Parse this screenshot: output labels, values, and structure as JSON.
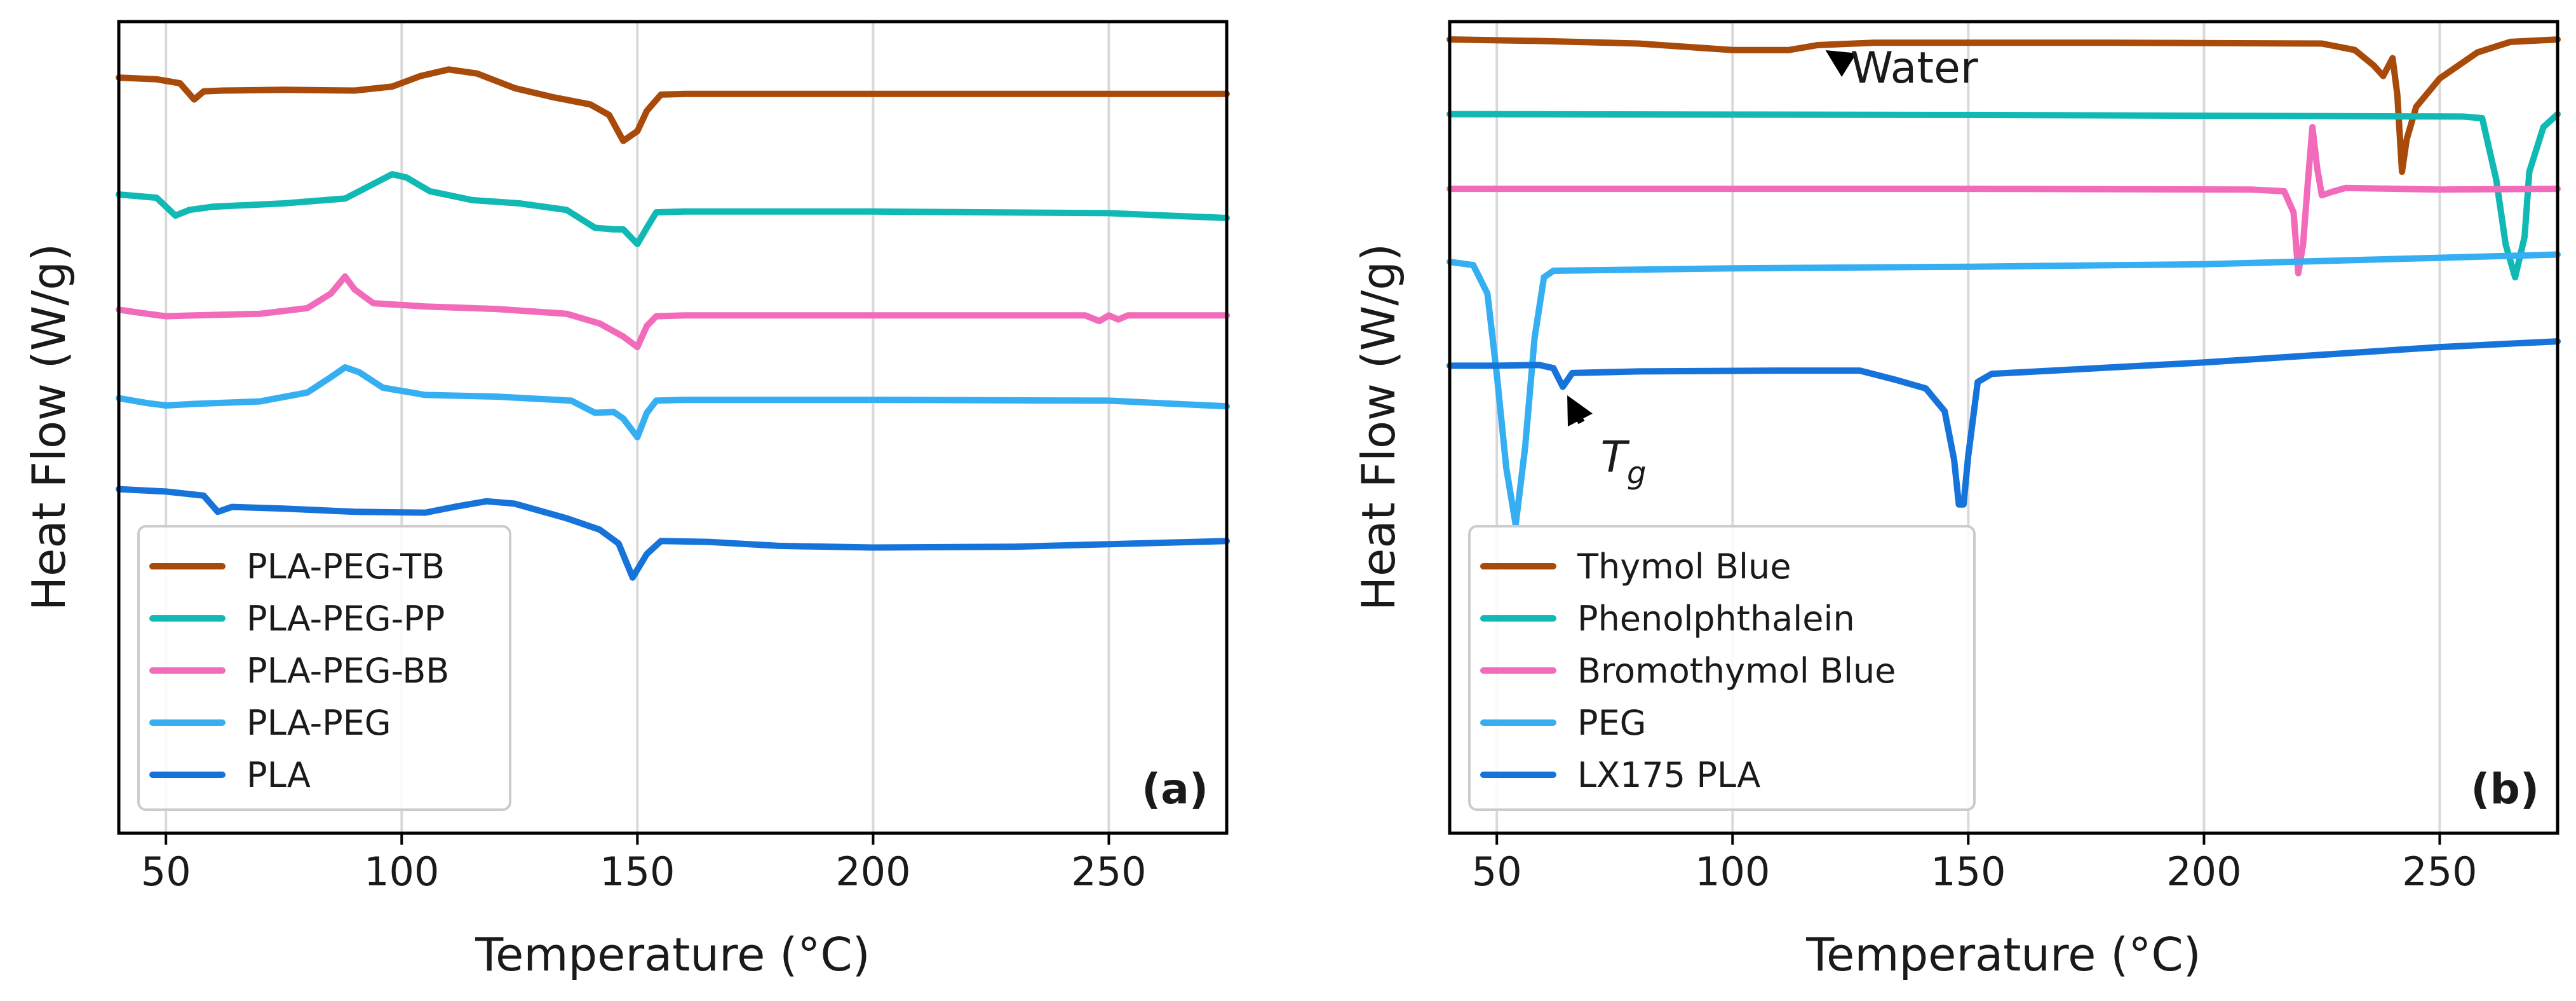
{
  "chart_data": [
    {
      "type": "line",
      "panel_label": "(a)",
      "title": "",
      "xlabel": "Temperature (°C)",
      "ylabel": "Heat Flow (W/g)",
      "xlim": [
        40,
        275
      ],
      "ylim": [
        0,
        100
      ],
      "xticks": [
        50,
        100,
        150,
        200,
        250
      ],
      "grid": "vertical",
      "legend_position": "lower-left",
      "series": [
        {
          "name": "PLA-PEG-TB",
          "color": "#a84a0a",
          "points": [
            [
              40,
              93.1
            ],
            [
              48,
              92.9
            ],
            [
              53,
              92.4
            ],
            [
              56,
              90.4
            ],
            [
              58,
              91.4
            ],
            [
              62,
              91.5
            ],
            [
              75,
              91.6
            ],
            [
              90,
              91.5
            ],
            [
              98,
              92.0
            ],
            [
              104,
              93.3
            ],
            [
              110,
              94.1
            ],
            [
              116,
              93.6
            ],
            [
              124,
              91.8
            ],
            [
              132,
              90.7
            ],
            [
              140,
              89.8
            ],
            [
              144,
              88.5
            ],
            [
              147,
              85.3
            ],
            [
              150,
              86.5
            ],
            [
              152,
              89.0
            ],
            [
              155,
              91.0
            ],
            [
              160,
              91.1
            ],
            [
              200,
              91.1
            ],
            [
              275,
              91.1
            ]
          ]
        },
        {
          "name": "PLA-PEG-PP",
          "color": "#10b9b4",
          "points": [
            [
              40,
              78.7
            ],
            [
              48,
              78.3
            ],
            [
              52,
              76.1
            ],
            [
              55,
              76.8
            ],
            [
              60,
              77.2
            ],
            [
              75,
              77.6
            ],
            [
              88,
              78.2
            ],
            [
              94,
              80.0
            ],
            [
              98,
              81.2
            ],
            [
              101,
              80.8
            ],
            [
              106,
              79.1
            ],
            [
              115,
              78.0
            ],
            [
              125,
              77.6
            ],
            [
              135,
              76.8
            ],
            [
              141,
              74.6
            ],
            [
              145,
              74.4
            ],
            [
              147,
              74.4
            ],
            [
              150,
              72.6
            ],
            [
              152,
              74.6
            ],
            [
              154,
              76.5
            ],
            [
              160,
              76.6
            ],
            [
              200,
              76.6
            ],
            [
              250,
              76.4
            ],
            [
              275,
              75.8
            ]
          ]
        },
        {
          "name": "PLA-PEG-BB",
          "color": "#f26bbb",
          "points": [
            [
              40,
              64.5
            ],
            [
              46,
              64.0
            ],
            [
              50,
              63.7
            ],
            [
              56,
              63.8
            ],
            [
              70,
              64.0
            ],
            [
              80,
              64.7
            ],
            [
              85,
              66.5
            ],
            [
              88,
              68.6
            ],
            [
              90,
              67.0
            ],
            [
              94,
              65.3
            ],
            [
              105,
              64.9
            ],
            [
              120,
              64.6
            ],
            [
              135,
              64.0
            ],
            [
              142,
              62.8
            ],
            [
              147,
              61.2
            ],
            [
              150,
              59.9
            ],
            [
              152,
              62.5
            ],
            [
              154,
              63.7
            ],
            [
              160,
              63.8
            ],
            [
              200,
              63.8
            ],
            [
              245,
              63.8
            ],
            [
              248,
              63.1
            ],
            [
              250,
              63.8
            ],
            [
              252,
              63.3
            ],
            [
              254,
              63.8
            ],
            [
              275,
              63.8
            ]
          ]
        },
        {
          "name": "PLA-PEG",
          "color": "#35aef2",
          "points": [
            [
              40,
              53.6
            ],
            [
              46,
              53.0
            ],
            [
              50,
              52.7
            ],
            [
              56,
              52.9
            ],
            [
              70,
              53.2
            ],
            [
              80,
              54.3
            ],
            [
              85,
              56.2
            ],
            [
              88,
              57.4
            ],
            [
              91,
              56.8
            ],
            [
              96,
              54.9
            ],
            [
              105,
              54.0
            ],
            [
              120,
              53.8
            ],
            [
              136,
              53.3
            ],
            [
              141,
              51.8
            ],
            [
              145,
              51.9
            ],
            [
              147,
              51.1
            ],
            [
              150,
              48.8
            ],
            [
              152,
              51.8
            ],
            [
              154,
              53.3
            ],
            [
              160,
              53.4
            ],
            [
              200,
              53.4
            ],
            [
              250,
              53.3
            ],
            [
              275,
              52.6
            ]
          ]
        },
        {
          "name": "PLA",
          "color": "#1573da",
          "points": [
            [
              40,
              42.4
            ],
            [
              50,
              42.1
            ],
            [
              58,
              41.6
            ],
            [
              61,
              39.6
            ],
            [
              64,
              40.2
            ],
            [
              75,
              40.0
            ],
            [
              90,
              39.6
            ],
            [
              105,
              39.5
            ],
            [
              112,
              40.3
            ],
            [
              118,
              40.9
            ],
            [
              124,
              40.6
            ],
            [
              135,
              38.8
            ],
            [
              142,
              37.4
            ],
            [
              146,
              35.7
            ],
            [
              149,
              31.5
            ],
            [
              152,
              34.4
            ],
            [
              155,
              36.0
            ],
            [
              165,
              35.9
            ],
            [
              180,
              35.4
            ],
            [
              200,
              35.2
            ],
            [
              230,
              35.3
            ],
            [
              275,
              36.0
            ]
          ]
        }
      ]
    },
    {
      "type": "line",
      "panel_label": "(b)",
      "title": "",
      "xlabel": "Temperature (°C)",
      "ylabel": "Heat Flow (W/g)",
      "xlim": [
        40,
        275
      ],
      "ylim": [
        0,
        100
      ],
      "xticks": [
        50,
        100,
        150,
        200,
        250
      ],
      "grid": "vertical",
      "legend_position": "lower-left",
      "annotations": [
        {
          "text": "Water",
          "arrow_to": [
            118,
            97.1
          ],
          "text_at": [
            125,
            92.5
          ]
        },
        {
          "text": "T",
          "subscript": "g",
          "arrow_to": [
            64,
            55.0
          ],
          "text_at": [
            72,
            44.5
          ]
        }
      ],
      "series": [
        {
          "name": "Thymol Blue",
          "color": "#a84a0a",
          "points": [
            [
              40,
              97.8
            ],
            [
              60,
              97.6
            ],
            [
              80,
              97.3
            ],
            [
              100,
              96.5
            ],
            [
              112,
              96.5
            ],
            [
              118,
              97.1
            ],
            [
              130,
              97.4
            ],
            [
              180,
              97.4
            ],
            [
              225,
              97.3
            ],
            [
              232,
              96.5
            ],
            [
              236,
              94.6
            ],
            [
              238,
              93.3
            ],
            [
              240,
              95.5
            ],
            [
              241,
              91.0
            ],
            [
              242,
              81.5
            ],
            [
              243,
              85.5
            ],
            [
              245,
              89.5
            ],
            [
              250,
              93.0
            ],
            [
              258,
              96.2
            ],
            [
              265,
              97.5
            ],
            [
              275,
              97.8
            ]
          ]
        },
        {
          "name": "Phenolphthalein",
          "color": "#10b9b4",
          "points": [
            [
              40,
              88.6
            ],
            [
              150,
              88.5
            ],
            [
              200,
              88.4
            ],
            [
              255,
              88.3
            ],
            [
              259,
              88.1
            ],
            [
              262,
              80.5
            ],
            [
              264,
              72.5
            ],
            [
              266,
              68.5
            ],
            [
              268,
              73.5
            ],
            [
              269,
              81.5
            ],
            [
              272,
              87.0
            ],
            [
              275,
              88.6
            ]
          ]
        },
        {
          "name": "Bromothymol Blue",
          "color": "#f26bbb",
          "points": [
            [
              40,
              79.4
            ],
            [
              150,
              79.4
            ],
            [
              210,
              79.3
            ],
            [
              217,
              79.1
            ],
            [
              219,
              76.5
            ],
            [
              220,
              69.0
            ],
            [
              221,
              72.5
            ],
            [
              222,
              80.0
            ],
            [
              223,
              87.0
            ],
            [
              224,
              82.0
            ],
            [
              225,
              78.6
            ],
            [
              227,
              79.0
            ],
            [
              230,
              79.5
            ],
            [
              250,
              79.3
            ],
            [
              275,
              79.4
            ]
          ]
        },
        {
          "name": "PEG",
          "color": "#35aef2",
          "points": [
            [
              40,
              70.4
            ],
            [
              45,
              70.0
            ],
            [
              48,
              66.5
            ],
            [
              50,
              56.5
            ],
            [
              52,
              45.0
            ],
            [
              54,
              38.0
            ],
            [
              56,
              47.5
            ],
            [
              58,
              61.0
            ],
            [
              60,
              68.5
            ],
            [
              62,
              69.3
            ],
            [
              100,
              69.6
            ],
            [
              150,
              69.8
            ],
            [
              200,
              70.1
            ],
            [
              250,
              70.9
            ],
            [
              275,
              71.3
            ]
          ]
        },
        {
          "name": "LX175 PLA",
          "color": "#1573da",
          "points": [
            [
              40,
              57.6
            ],
            [
              50,
              57.6
            ],
            [
              59,
              57.7
            ],
            [
              62,
              57.3
            ],
            [
              64,
              55.0
            ],
            [
              66,
              56.7
            ],
            [
              80,
              56.9
            ],
            [
              110,
              57.0
            ],
            [
              127,
              57.0
            ],
            [
              135,
              55.8
            ],
            [
              141,
              54.8
            ],
            [
              145,
              52.0
            ],
            [
              147,
              46.0
            ],
            [
              148,
              40.5
            ],
            [
              149,
              40.5
            ],
            [
              150,
              46.5
            ],
            [
              152,
              55.6
            ],
            [
              155,
              56.6
            ],
            [
              200,
              58.0
            ],
            [
              250,
              59.9
            ],
            [
              275,
              60.6
            ]
          ]
        }
      ]
    }
  ]
}
